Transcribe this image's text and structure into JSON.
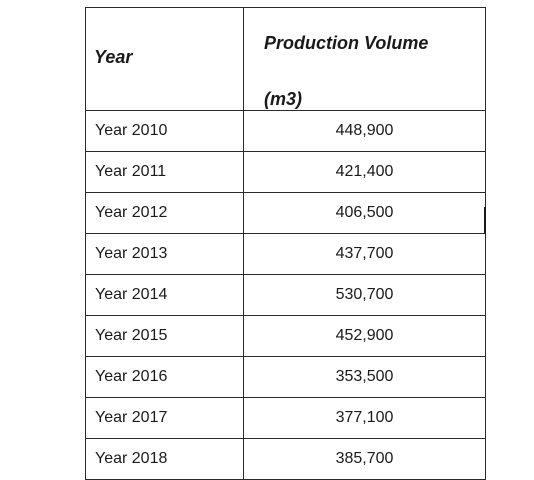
{
  "table": {
    "headers": {
      "year": "Year",
      "volume_line1": "Production Volume",
      "volume_line2": "(m3)"
    },
    "rows": [
      {
        "year": "Year 2010",
        "volume": "448,900"
      },
      {
        "year": "Year 2011",
        "volume": "421,400"
      },
      {
        "year": "Year 2012",
        "volume": "406,500"
      },
      {
        "year": "Year 2013",
        "volume": "437,700"
      },
      {
        "year": "Year 2014",
        "volume": "530,700"
      },
      {
        "year": "Year 2015",
        "volume": "452,900"
      },
      {
        "year": "Year 2016",
        "volume": "353,500"
      },
      {
        "year": "Year 2017",
        "volume": "377,100"
      },
      {
        "year": "Year 2018",
        "volume": "385,700"
      }
    ]
  }
}
